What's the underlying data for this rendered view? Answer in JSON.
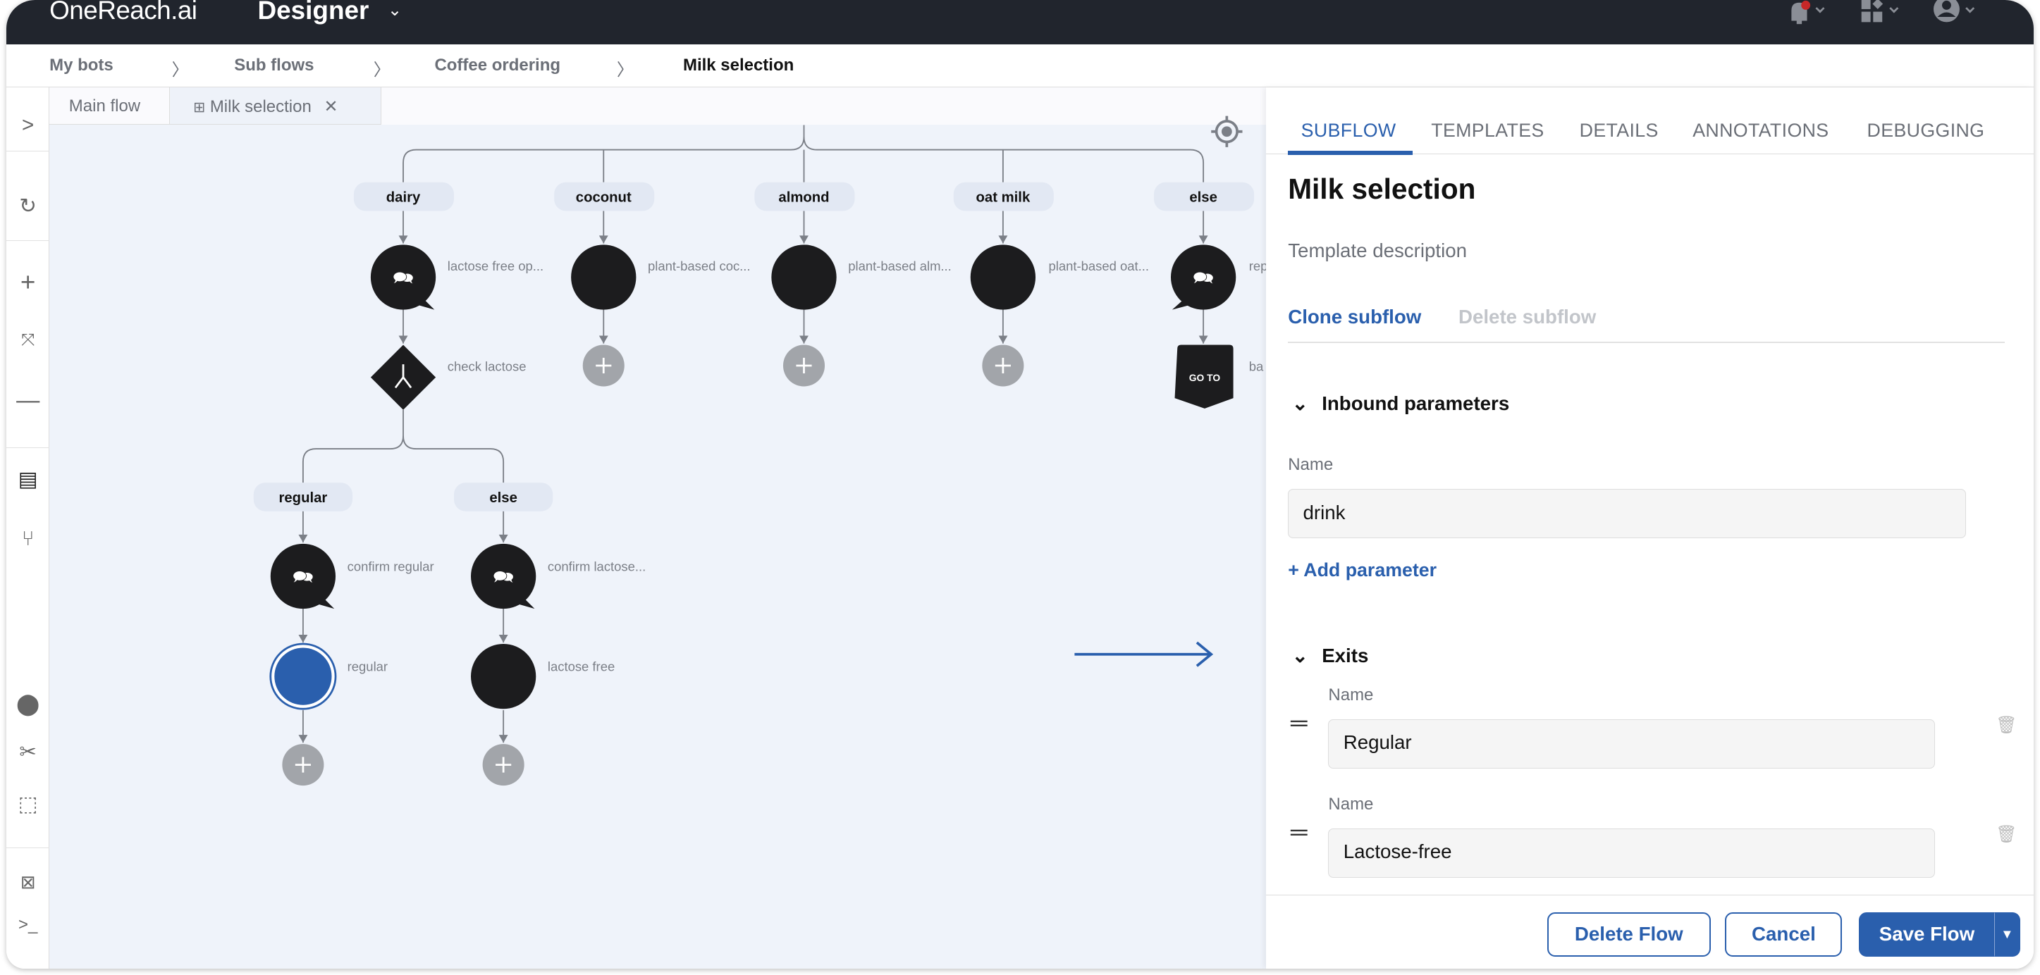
{
  "topbar": {
    "logo": "OneReach.ai",
    "product": "Designer",
    "icons": [
      "bell-icon",
      "apps-icon",
      "user-icon"
    ],
    "notification_color": "#c62828"
  },
  "breadcrumb": [
    "My bots",
    "Sub flows",
    "Coffee ordering",
    "Milk selection"
  ],
  "canvas_tabs": [
    {
      "label": "Main flow"
    },
    {
      "label": "Milk selection",
      "active": true
    }
  ],
  "flow": {
    "conditions": [
      "dairy",
      "coconut",
      "almond",
      "oat milk",
      "else"
    ],
    "nodes_row1": [
      "lactose free op...",
      "plant-based coc...",
      "plant-based alm...",
      "plant-based oat...",
      "rep"
    ],
    "check": "check lactose",
    "goto_text": "GO TO",
    "goto_label": "ba",
    "sub_conditions": [
      "regular",
      "else"
    ],
    "sub_chat": [
      "confirm regular",
      "confirm lactose..."
    ],
    "sub_exit": [
      "regular",
      "lactose free"
    ]
  },
  "panel": {
    "tabs": [
      "SUBFLOW",
      "TEMPLATES",
      "DETAILS",
      "ANNOTATIONS",
      "DEBUGGING"
    ],
    "title": "Milk selection",
    "description": "Template description",
    "clone": "Clone subflow",
    "delete_subflow": "Delete subflow",
    "inbound_title": "Inbound parameters",
    "name_label": "Name",
    "inbound_value": "drink",
    "add_parameter": "+ Add parameter",
    "exits_title": "Exits",
    "exits": [
      "Regular",
      "Lactose-free"
    ]
  },
  "footer": {
    "delete": "Delete Flow",
    "cancel": "Cancel",
    "save": "Save Flow"
  },
  "colors": {
    "accent": "#2a5fad",
    "topbar": "#21252d",
    "canvas": "#eff3fa",
    "node": "#1c1c1e"
  }
}
